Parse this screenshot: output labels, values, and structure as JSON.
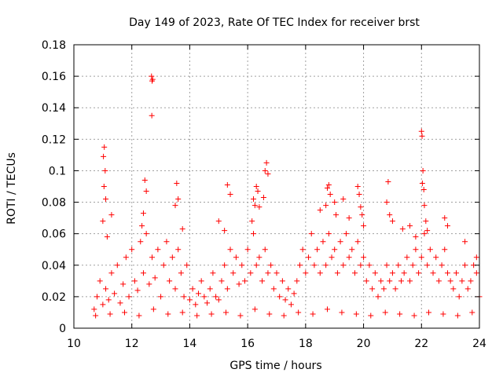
{
  "chart_data": {
    "type": "scatter",
    "title": "Day 149 of 2023, Rate Of TEC Index for receiver brst",
    "xlabel": "GPS time / hours",
    "ylabel": "ROTI / TECUs",
    "xlim": [
      10,
      24
    ],
    "ylim": [
      0,
      0.18
    ],
    "x_ticks": [
      10,
      12,
      14,
      16,
      18,
      20,
      22,
      24
    ],
    "x_tick_labels": [
      "10",
      "12",
      "14",
      "16",
      "18",
      "20",
      "22",
      "24"
    ],
    "y_ticks": [
      0,
      0.02,
      0.04,
      0.06,
      0.08,
      0.1,
      0.12,
      0.14,
      0.16,
      0.18
    ],
    "y_tick_labels": [
      "0",
      "0.02",
      "0.04",
      "0.06",
      "0.08",
      "0.1",
      "0.12",
      "0.14",
      "0.16",
      "0.18"
    ],
    "grid": true,
    "marker": "plus",
    "marker_color": "#ff0000",
    "series": [
      {
        "points": [
          [
            10.7,
            0.012
          ],
          [
            10.8,
            0.02
          ],
          [
            10.9,
            0.03
          ],
          [
            11.0,
            0.015
          ],
          [
            11.1,
            0.025
          ],
          [
            11.2,
            0.018
          ],
          [
            11.3,
            0.035
          ],
          [
            11.4,
            0.022
          ],
          [
            11.5,
            0.04
          ],
          [
            11.6,
            0.016
          ],
          [
            11.7,
            0.028
          ],
          [
            11.8,
            0.045
          ],
          [
            11.9,
            0.02
          ],
          [
            12.0,
            0.05
          ],
          [
            12.1,
            0.03
          ],
          [
            12.2,
            0.024
          ],
          [
            12.3,
            0.055
          ],
          [
            12.4,
            0.035
          ],
          [
            12.5,
            0.06
          ],
          [
            12.6,
            0.028
          ],
          [
            12.7,
            0.045
          ],
          [
            12.8,
            0.032
          ],
          [
            12.9,
            0.05
          ],
          [
            13.0,
            0.02
          ],
          [
            13.1,
            0.04
          ],
          [
            13.2,
            0.055
          ],
          [
            13.3,
            0.03
          ],
          [
            13.4,
            0.045
          ],
          [
            13.5,
            0.025
          ],
          [
            13.6,
            0.05
          ],
          [
            13.7,
            0.035
          ],
          [
            13.8,
            0.02
          ],
          [
            13.9,
            0.04
          ],
          [
            14.0,
            0.018
          ],
          [
            14.1,
            0.025
          ],
          [
            14.2,
            0.015
          ],
          [
            14.3,
            0.022
          ],
          [
            14.4,
            0.03
          ],
          [
            14.5,
            0.02
          ],
          [
            14.6,
            0.016
          ],
          [
            14.7,
            0.025
          ],
          [
            14.8,
            0.035
          ],
          [
            14.9,
            0.02
          ],
          [
            15.0,
            0.018
          ],
          [
            15.1,
            0.03
          ],
          [
            15.2,
            0.04
          ],
          [
            15.3,
            0.025
          ],
          [
            15.4,
            0.05
          ],
          [
            15.5,
            0.035
          ],
          [
            15.6,
            0.045
          ],
          [
            15.7,
            0.028
          ],
          [
            15.8,
            0.04
          ],
          [
            15.9,
            0.03
          ],
          [
            16.0,
            0.05
          ],
          [
            16.1,
            0.035
          ],
          [
            16.2,
            0.06
          ],
          [
            16.3,
            0.04
          ],
          [
            16.4,
            0.045
          ],
          [
            16.5,
            0.03
          ],
          [
            16.6,
            0.05
          ],
          [
            16.7,
            0.035
          ],
          [
            16.8,
            0.04
          ],
          [
            16.9,
            0.025
          ],
          [
            17.0,
            0.035
          ],
          [
            17.1,
            0.02
          ],
          [
            17.2,
            0.03
          ],
          [
            17.3,
            0.018
          ],
          [
            17.4,
            0.025
          ],
          [
            17.5,
            0.015
          ],
          [
            17.6,
            0.022
          ],
          [
            17.7,
            0.03
          ],
          [
            17.8,
            0.04
          ],
          [
            17.9,
            0.05
          ],
          [
            18.0,
            0.035
          ],
          [
            18.1,
            0.045
          ],
          [
            18.2,
            0.06
          ],
          [
            18.3,
            0.04
          ],
          [
            18.4,
            0.05
          ],
          [
            18.5,
            0.035
          ],
          [
            18.6,
            0.055
          ],
          [
            18.7,
            0.04
          ],
          [
            18.8,
            0.06
          ],
          [
            18.9,
            0.045
          ],
          [
            19.0,
            0.05
          ],
          [
            19.1,
            0.035
          ],
          [
            19.2,
            0.055
          ],
          [
            19.3,
            0.04
          ],
          [
            19.4,
            0.06
          ],
          [
            19.5,
            0.045
          ],
          [
            19.6,
            0.05
          ],
          [
            19.7,
            0.035
          ],
          [
            19.8,
            0.055
          ],
          [
            19.9,
            0.04
          ],
          [
            20.0,
            0.045
          ],
          [
            20.1,
            0.03
          ],
          [
            20.2,
            0.04
          ],
          [
            20.3,
            0.025
          ],
          [
            20.4,
            0.035
          ],
          [
            20.5,
            0.02
          ],
          [
            20.6,
            0.03
          ],
          [
            20.7,
            0.025
          ],
          [
            20.8,
            0.04
          ],
          [
            20.9,
            0.03
          ],
          [
            21.0,
            0.035
          ],
          [
            21.1,
            0.025
          ],
          [
            21.2,
            0.04
          ],
          [
            21.3,
            0.03
          ],
          [
            21.4,
            0.035
          ],
          [
            21.5,
            0.045
          ],
          [
            21.6,
            0.03
          ],
          [
            21.7,
            0.04
          ],
          [
            21.8,
            0.05
          ],
          [
            21.9,
            0.035
          ],
          [
            22.0,
            0.045
          ],
          [
            22.1,
            0.06
          ],
          [
            22.2,
            0.04
          ],
          [
            22.3,
            0.05
          ],
          [
            22.4,
            0.035
          ],
          [
            22.5,
            0.045
          ],
          [
            22.6,
            0.03
          ],
          [
            22.7,
            0.04
          ],
          [
            22.8,
            0.05
          ],
          [
            22.9,
            0.035
          ],
          [
            23.0,
            0.03
          ],
          [
            23.1,
            0.025
          ],
          [
            23.2,
            0.035
          ],
          [
            23.3,
            0.02
          ],
          [
            23.4,
            0.03
          ],
          [
            23.5,
            0.04
          ],
          [
            23.6,
            0.025
          ],
          [
            23.7,
            0.03
          ],
          [
            23.8,
            0.04
          ],
          [
            23.9,
            0.035
          ],
          [
            24.0,
            0.02
          ],
          [
            10.75,
            0.008
          ],
          [
            11.25,
            0.009
          ],
          [
            11.75,
            0.01
          ],
          [
            12.25,
            0.008
          ],
          [
            12.75,
            0.012
          ],
          [
            13.25,
            0.009
          ],
          [
            13.75,
            0.01
          ],
          [
            14.25,
            0.008
          ],
          [
            14.75,
            0.009
          ],
          [
            15.25,
            0.01
          ],
          [
            15.75,
            0.008
          ],
          [
            16.25,
            0.012
          ],
          [
            16.75,
            0.009
          ],
          [
            17.25,
            0.008
          ],
          [
            17.75,
            0.01
          ],
          [
            18.25,
            0.009
          ],
          [
            18.75,
            0.012
          ],
          [
            19.25,
            0.01
          ],
          [
            19.75,
            0.009
          ],
          [
            20.25,
            0.008
          ],
          [
            20.75,
            0.01
          ],
          [
            21.25,
            0.009
          ],
          [
            21.75,
            0.008
          ],
          [
            22.25,
            0.01
          ],
          [
            22.75,
            0.009
          ],
          [
            23.25,
            0.008
          ],
          [
            23.75,
            0.01
          ],
          [
            11.05,
            0.115
          ],
          [
            11.02,
            0.109
          ],
          [
            11.08,
            0.1
          ],
          [
            11.04,
            0.09
          ],
          [
            11.1,
            0.082
          ],
          [
            11.0,
            0.068
          ],
          [
            11.15,
            0.058
          ],
          [
            11.3,
            0.072
          ],
          [
            12.45,
            0.094
          ],
          [
            12.5,
            0.087
          ],
          [
            12.4,
            0.073
          ],
          [
            12.35,
            0.065
          ],
          [
            12.68,
            0.16
          ],
          [
            12.7,
            0.157
          ],
          [
            12.72,
            0.158
          ],
          [
            12.69,
            0.135
          ],
          [
            13.55,
            0.092
          ],
          [
            13.6,
            0.082
          ],
          [
            13.5,
            0.078
          ],
          [
            13.75,
            0.063
          ],
          [
            15.3,
            0.091
          ],
          [
            15.4,
            0.085
          ],
          [
            15.0,
            0.068
          ],
          [
            15.2,
            0.062
          ],
          [
            16.2,
            0.082
          ],
          [
            16.3,
            0.09
          ],
          [
            16.35,
            0.087
          ],
          [
            16.25,
            0.078
          ],
          [
            16.4,
            0.077
          ],
          [
            16.6,
            0.1
          ],
          [
            16.65,
            0.105
          ],
          [
            16.7,
            0.098
          ],
          [
            16.55,
            0.083
          ],
          [
            16.15,
            0.068
          ],
          [
            18.5,
            0.075
          ],
          [
            18.7,
            0.078
          ],
          [
            18.75,
            0.089
          ],
          [
            18.8,
            0.091
          ],
          [
            18.85,
            0.085
          ],
          [
            19.0,
            0.08
          ],
          [
            19.05,
            0.072
          ],
          [
            19.3,
            0.082
          ],
          [
            19.5,
            0.07
          ],
          [
            19.8,
            0.09
          ],
          [
            19.85,
            0.085
          ],
          [
            19.9,
            0.077
          ],
          [
            19.95,
            0.072
          ],
          [
            20.0,
            0.065
          ],
          [
            20.85,
            0.093
          ],
          [
            20.8,
            0.08
          ],
          [
            20.9,
            0.072
          ],
          [
            21.0,
            0.068
          ],
          [
            21.35,
            0.063
          ],
          [
            21.6,
            0.065
          ],
          [
            21.8,
            0.058
          ],
          [
            22.0,
            0.125
          ],
          [
            22.02,
            0.122
          ],
          [
            22.05,
            0.1
          ],
          [
            22.03,
            0.092
          ],
          [
            22.08,
            0.088
          ],
          [
            22.1,
            0.078
          ],
          [
            22.15,
            0.068
          ],
          [
            22.2,
            0.062
          ],
          [
            22.8,
            0.07
          ],
          [
            22.9,
            0.065
          ],
          [
            23.5,
            0.055
          ],
          [
            23.9,
            0.045
          ]
        ]
      }
    ]
  }
}
